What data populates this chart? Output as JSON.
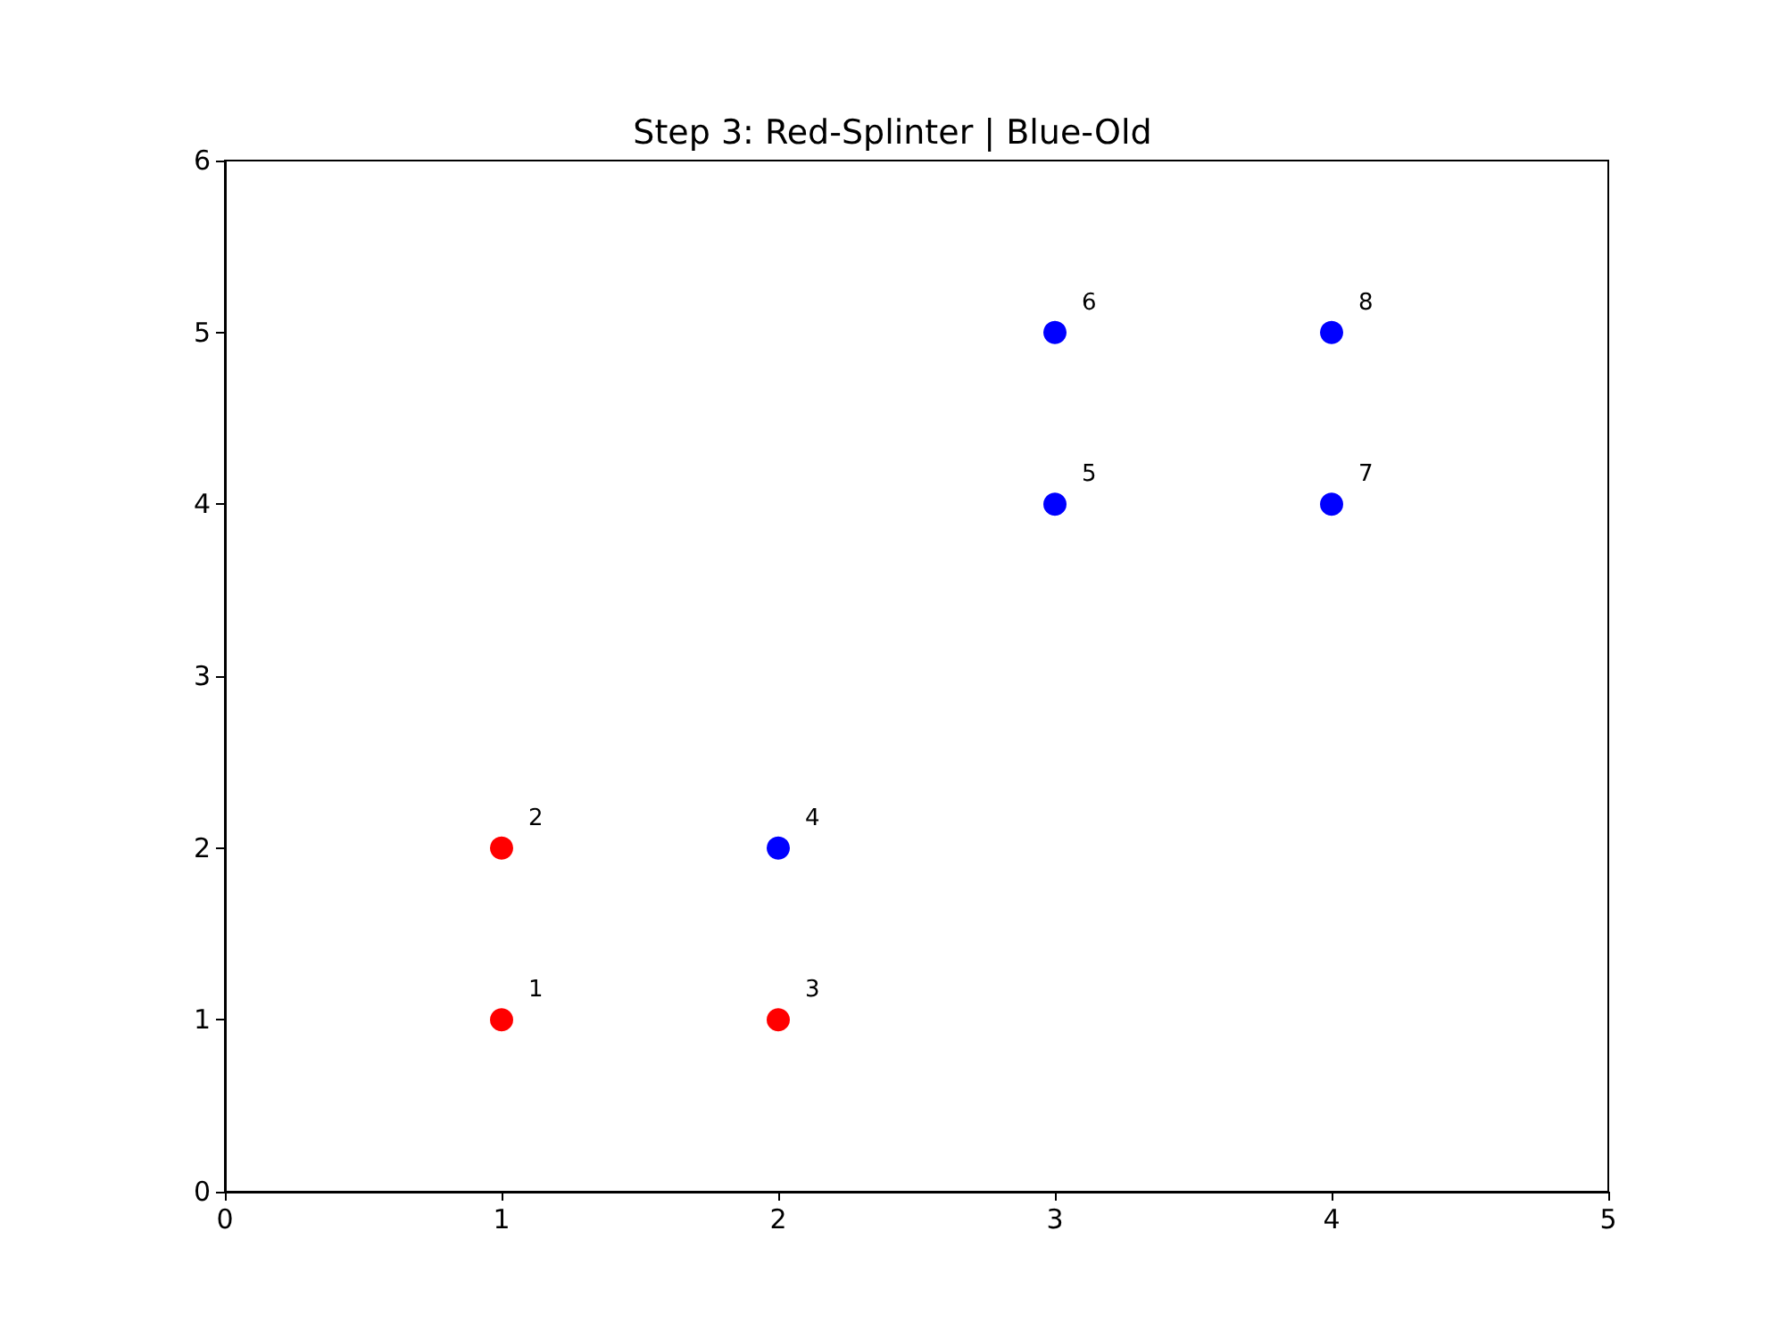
{
  "chart_data": {
    "type": "scatter",
    "title": "Step 3: Red-Splinter | Blue-Old",
    "marker": "circle",
    "xlim": [
      0,
      5
    ],
    "xticks": [
      0,
      1,
      2,
      3,
      4,
      5
    ],
    "ylim": [
      0,
      6
    ],
    "yticks": [
      0,
      1,
      2,
      3,
      4,
      5,
      6
    ],
    "series": [
      {
        "color": "#ff0000",
        "x": [
          1,
          1,
          2
        ],
        "values": [
          1,
          2,
          1
        ]
      },
      {
        "color": "#0000ff",
        "x": [
          2,
          3,
          3,
          4,
          4
        ],
        "values": [
          2,
          4,
          5,
          4,
          5
        ]
      }
    ],
    "annotations": [
      {
        "text": "1",
        "x": 1,
        "y": 1
      },
      {
        "text": "2",
        "x": 1,
        "y": 2
      },
      {
        "text": "3",
        "x": 2,
        "y": 1
      },
      {
        "text": "4",
        "x": 2,
        "y": 2
      },
      {
        "text": "5",
        "x": 3,
        "y": 4
      },
      {
        "text": "6",
        "x": 3,
        "y": 5
      },
      {
        "text": "7",
        "x": 4,
        "y": 4
      },
      {
        "text": "8",
        "x": 4,
        "y": 5
      }
    ]
  }
}
